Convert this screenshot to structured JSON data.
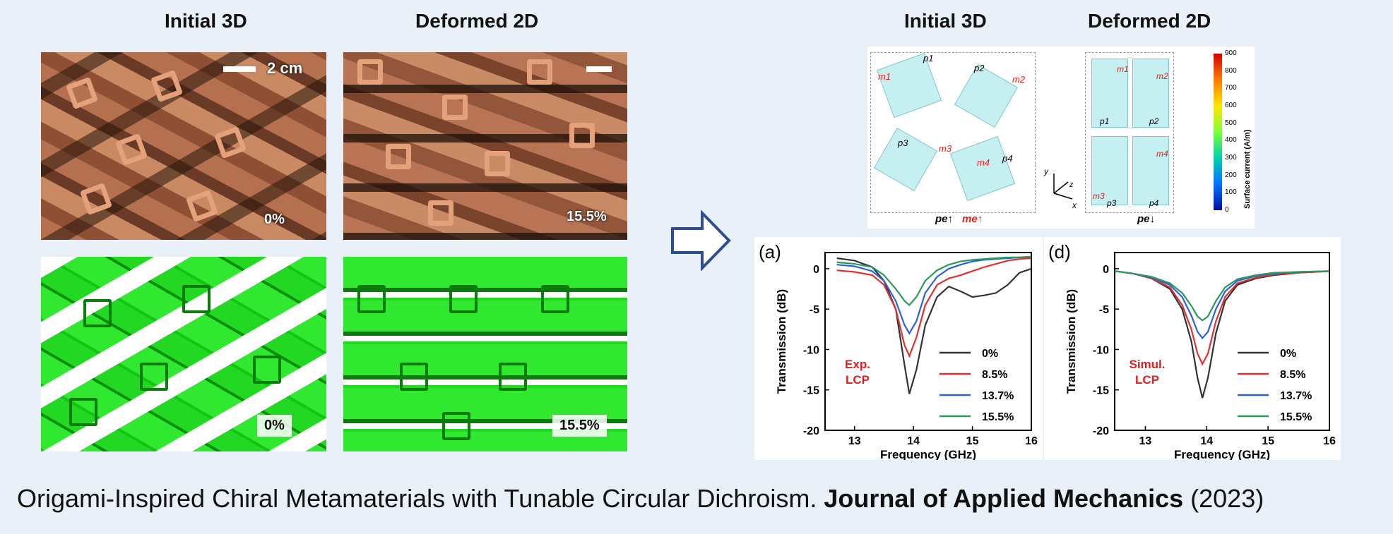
{
  "left": {
    "heading_initial": "Initial 3D",
    "heading_deformed": "Deformed 2D",
    "scale_label": "2 cm",
    "photo_initial_pct": "0%",
    "photo_deformed_pct": "15.5%",
    "model_initial_pct": "0%",
    "model_deformed_pct": "15.5%"
  },
  "right": {
    "heading_initial": "Initial 3D",
    "heading_deformed": "Deformed 2D",
    "colorbar": {
      "title": "Surface current (A/m)",
      "ticks": [
        "900",
        "800",
        "700",
        "600",
        "500",
        "400",
        "300",
        "200",
        "100",
        "0"
      ]
    },
    "labels_initial": [
      "p1",
      "m1",
      "p2",
      "m2",
      "p3",
      "m3",
      "p4",
      "m4"
    ],
    "labels_deformed": [
      "m1",
      "p1",
      "m2",
      "p2",
      "m3",
      "p3",
      "m4",
      "p4"
    ],
    "axes_labels": [
      "y",
      "z",
      "x"
    ],
    "initial_bottom_label_p": "pe↑",
    "initial_bottom_label_m": "me↑",
    "deformed_bottom_label": "pe↓"
  },
  "chart_data": [
    {
      "type": "line",
      "panel_label": "(a)",
      "annotation": [
        "Exp.",
        "LCP"
      ],
      "xlabel": "Frequency (GHz)",
      "ylabel": "Transmission (dB)",
      "xlim": [
        12.5,
        16
      ],
      "ylim": [
        -20,
        2
      ],
      "xticks": [
        "13",
        "14",
        "15",
        "16"
      ],
      "yticks": [
        "0",
        "-5",
        "-10",
        "-15",
        "-20"
      ],
      "legend_position": "lower-right",
      "series": [
        {
          "name": "0%",
          "color": "#333333",
          "x": [
            12.7,
            13.0,
            13.3,
            13.5,
            13.7,
            13.85,
            13.93,
            14.05,
            14.2,
            14.4,
            14.6,
            14.8,
            15.0,
            15.2,
            15.4,
            15.6,
            15.8,
            16.0
          ],
          "y": [
            1.3,
            1.0,
            0.2,
            -1.5,
            -5.0,
            -12.0,
            -15.5,
            -12.5,
            -7.0,
            -3.5,
            -2.2,
            -2.8,
            -3.5,
            -3.3,
            -3.0,
            -2.0,
            -0.5,
            0.0
          ]
        },
        {
          "name": "8.5%",
          "color": "#e03030",
          "x": [
            12.7,
            13.0,
            13.3,
            13.5,
            13.7,
            13.85,
            13.93,
            14.05,
            14.2,
            14.4,
            14.6,
            14.8,
            15.0,
            15.2,
            15.4,
            15.6,
            15.8,
            16.0
          ],
          "y": [
            -0.2,
            -0.4,
            -0.8,
            -2.0,
            -5.0,
            -9.5,
            -10.8,
            -8.5,
            -4.5,
            -2.0,
            -1.2,
            -0.8,
            -0.3,
            0.2,
            0.6,
            1.0,
            1.2,
            1.3
          ]
        },
        {
          "name": "13.7%",
          "color": "#2a62d8",
          "x": [
            12.7,
            13.0,
            13.3,
            13.5,
            13.7,
            13.85,
            13.93,
            14.05,
            14.2,
            14.4,
            14.6,
            14.8,
            15.0,
            15.2,
            15.4,
            15.6,
            15.8,
            16.0
          ],
          "y": [
            0.5,
            0.3,
            -0.3,
            -1.5,
            -4.0,
            -7.0,
            -8.0,
            -6.5,
            -3.0,
            -1.0,
            0.0,
            0.5,
            0.9,
            1.1,
            1.2,
            1.3,
            1.4,
            1.4
          ]
        },
        {
          "name": "15.5%",
          "color": "#2a9a5a",
          "x": [
            12.7,
            13.0,
            13.3,
            13.5,
            13.7,
            13.85,
            13.93,
            14.05,
            14.2,
            14.4,
            14.6,
            14.8,
            15.0,
            15.2,
            15.4,
            15.6,
            15.8,
            16.0
          ],
          "y": [
            0.8,
            0.6,
            0.2,
            -0.8,
            -2.5,
            -4.0,
            -4.5,
            -3.5,
            -1.5,
            -0.2,
            0.5,
            0.9,
            1.1,
            1.2,
            1.3,
            1.4,
            1.4,
            1.5
          ]
        }
      ]
    },
    {
      "type": "line",
      "panel_label": "(d)",
      "annotation": [
        "Simul.",
        "LCP"
      ],
      "xlabel": "Frequency (GHz)",
      "ylabel": "Transmission (dB)",
      "xlim": [
        12.5,
        16
      ],
      "ylim": [
        -20,
        2
      ],
      "xticks": [
        "13",
        "14",
        "15",
        "16"
      ],
      "yticks": [
        "0",
        "-5",
        "-10",
        "-15",
        "-20"
      ],
      "legend_position": "lower-right",
      "series": [
        {
          "name": "0%",
          "color": "#333333",
          "x": [
            12.5,
            12.8,
            13.1,
            13.4,
            13.6,
            13.75,
            13.85,
            13.93,
            14.02,
            14.15,
            14.3,
            14.5,
            14.8,
            15.1,
            15.5,
            16.0
          ],
          "y": [
            -0.3,
            -0.6,
            -1.2,
            -2.5,
            -5.0,
            -9.0,
            -13.5,
            -16.0,
            -13.5,
            -8.0,
            -4.0,
            -2.0,
            -1.2,
            -0.8,
            -0.5,
            -0.3
          ]
        },
        {
          "name": "8.5%",
          "color": "#e03030",
          "x": [
            12.5,
            12.8,
            13.1,
            13.4,
            13.6,
            13.75,
            13.85,
            13.93,
            14.02,
            14.15,
            14.3,
            14.5,
            14.8,
            15.1,
            15.5,
            16.0
          ],
          "y": [
            -0.3,
            -0.6,
            -1.2,
            -2.3,
            -4.5,
            -7.5,
            -10.5,
            -11.8,
            -10.5,
            -6.5,
            -3.5,
            -1.8,
            -1.1,
            -0.7,
            -0.5,
            -0.3
          ]
        },
        {
          "name": "13.7%",
          "color": "#2a62d8",
          "x": [
            12.5,
            12.8,
            13.1,
            13.4,
            13.6,
            13.75,
            13.85,
            13.93,
            14.02,
            14.15,
            14.3,
            14.5,
            14.8,
            15.1,
            15.5,
            16.0
          ],
          "y": [
            -0.3,
            -0.6,
            -1.1,
            -2.0,
            -3.5,
            -5.8,
            -7.8,
            -8.6,
            -7.8,
            -5.0,
            -2.8,
            -1.5,
            -0.9,
            -0.6,
            -0.4,
            -0.3
          ]
        },
        {
          "name": "15.5%",
          "color": "#2a9a5a",
          "x": [
            12.5,
            12.8,
            13.1,
            13.4,
            13.6,
            13.75,
            13.85,
            13.93,
            14.02,
            14.15,
            14.3,
            14.5,
            14.8,
            15.1,
            15.5,
            16.0
          ],
          "y": [
            -0.3,
            -0.6,
            -1.0,
            -1.8,
            -3.0,
            -4.6,
            -5.9,
            -6.4,
            -5.9,
            -4.0,
            -2.3,
            -1.3,
            -0.8,
            -0.5,
            -0.4,
            -0.3
          ]
        }
      ]
    }
  ],
  "caption": {
    "title": "Origami-Inspired Chiral Metamaterials with Tunable Circular Dichroism.",
    "journal": "Journal of Applied Mechanics",
    "year": "(2023)"
  }
}
